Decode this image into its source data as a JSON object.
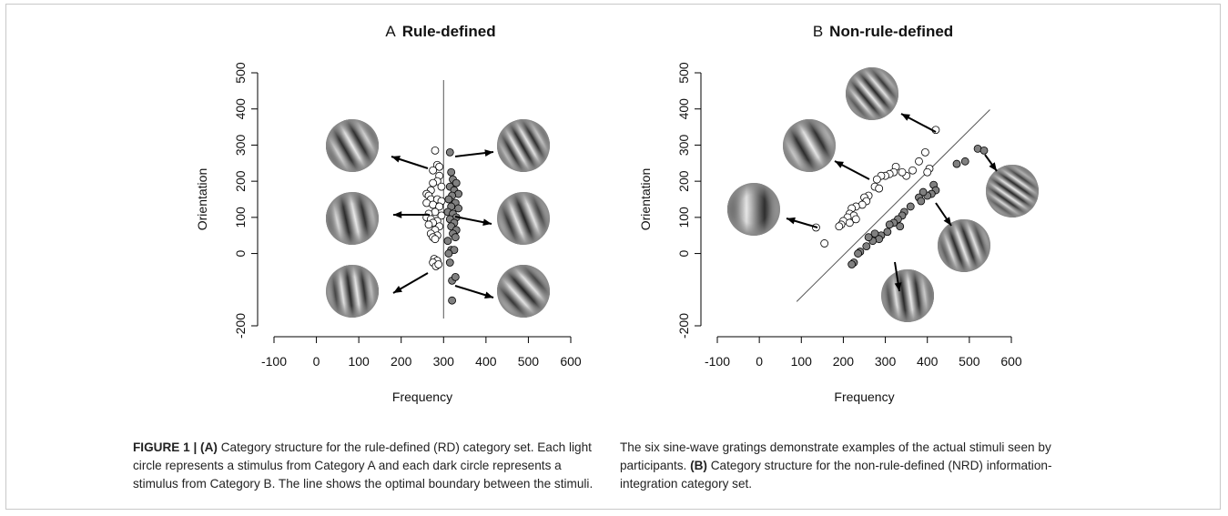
{
  "chart_data": [
    {
      "type": "scatter",
      "panel": "A",
      "title": "Rule-defined",
      "xlabel": "Frequency",
      "ylabel": "Orientation",
      "xlim": [
        -100,
        600
      ],
      "xticks": [
        -100,
        0,
        100,
        200,
        300,
        400,
        500,
        600
      ],
      "ylim": [
        -200,
        500
      ],
      "yticks": [
        -200,
        0,
        100,
        200,
        300,
        400,
        500
      ],
      "boundary": {
        "x": [
          300,
          300
        ],
        "y": [
          480,
          -180
        ]
      },
      "series": [
        {
          "color": "#ffffff",
          "x": [
            280,
            285,
            290,
            275,
            290,
            285,
            275,
            295,
            270,
            260,
            265,
            270,
            285,
            295,
            260,
            275,
            290,
            280,
            265,
            295,
            260,
            270,
            285,
            275,
            265,
            290,
            280,
            270,
            285,
            275,
            280,
            278,
            285,
            275,
            282,
            288
          ],
          "y": [
            285,
            245,
            240,
            230,
            215,
            200,
            195,
            185,
            175,
            165,
            160,
            150,
            150,
            145,
            140,
            135,
            130,
            115,
            110,
            105,
            100,
            95,
            90,
            85,
            80,
            75,
            65,
            55,
            50,
            45,
            40,
            -15,
            -20,
            -25,
            -35,
            -30
          ]
        },
        {
          "color": "#808080",
          "x": [
            315,
            318,
            322,
            330,
            315,
            325,
            335,
            320,
            312,
            328,
            318,
            335,
            310,
            322,
            330,
            315,
            325,
            318,
            330,
            322,
            328,
            310,
            318,
            325,
            312,
            315,
            320,
            328,
            320
          ],
          "y": [
            280,
            225,
            205,
            195,
            185,
            175,
            165,
            160,
            150,
            140,
            130,
            125,
            115,
            110,
            100,
            95,
            85,
            75,
            65,
            55,
            45,
            35,
            10,
            10,
            0,
            -25,
            -75,
            -65,
            -130
          ]
        }
      ]
    },
    {
      "type": "scatter",
      "panel": "B",
      "title": "Non-rule-defined",
      "xlabel": "Frequency",
      "ylabel": "Orientation",
      "xlim": [
        -100,
        600
      ],
      "xticks": [
        -100,
        0,
        100,
        200,
        300,
        400,
        500,
        600
      ],
      "ylim": [
        -200,
        500
      ],
      "yticks": [
        -200,
        0,
        100,
        200,
        300,
        400,
        500
      ],
      "boundary": {
        "x": [
          89,
          549
        ],
        "y": [
          -133,
          398
        ]
      },
      "series": [
        {
          "color": "#ffffff",
          "x": [
            420,
            395,
            405,
            400,
            380,
            365,
            350,
            340,
            325,
            320,
            310,
            300,
            290,
            280,
            275,
            285,
            260,
            250,
            255,
            245,
            230,
            220,
            215,
            225,
            210,
            200,
            215,
            195,
            190,
            135,
            155,
            230
          ],
          "y": [
            342,
            280,
            235,
            225,
            255,
            230,
            215,
            225,
            240,
            225,
            220,
            215,
            215,
            205,
            185,
            180,
            160,
            155,
            145,
            135,
            130,
            125,
            110,
            105,
            100,
            90,
            85,
            80,
            75,
            72,
            28,
            95
          ]
        },
        {
          "color": "#808080",
          "x": [
            520,
            535,
            490,
            470,
            415,
            420,
            410,
            400,
            390,
            380,
            385,
            360,
            345,
            340,
            330,
            320,
            310,
            335,
            305,
            290,
            275,
            285,
            270,
            260,
            255,
            240,
            235,
            225,
            220
          ],
          "y": [
            290,
            285,
            255,
            248,
            190,
            175,
            165,
            160,
            170,
            155,
            145,
            130,
            115,
            105,
            95,
            85,
            80,
            75,
            60,
            50,
            55,
            40,
            35,
            45,
            20,
            5,
            0,
            -25,
            -30
          ]
        }
      ]
    }
  ],
  "caption": [
    {
      "bold": true,
      "text": "FIGURE 1 | (A)"
    },
    {
      "bold": false,
      "text": " Category structure for the rule-defined (RD) category set. Each light circle represents a stimulus from Category A and each dark circle represents a stimulus from Category B. The line shows the optimal boundary between the stimuli. The six sine-wave gratings demonstrate examples of the actual stimuli seen by participants. "
    },
    {
      "bold": true,
      "text": "(B)"
    },
    {
      "bold": false,
      "text": " Category structure for the non-rule-defined (NRD) information-integration category set."
    }
  ]
}
